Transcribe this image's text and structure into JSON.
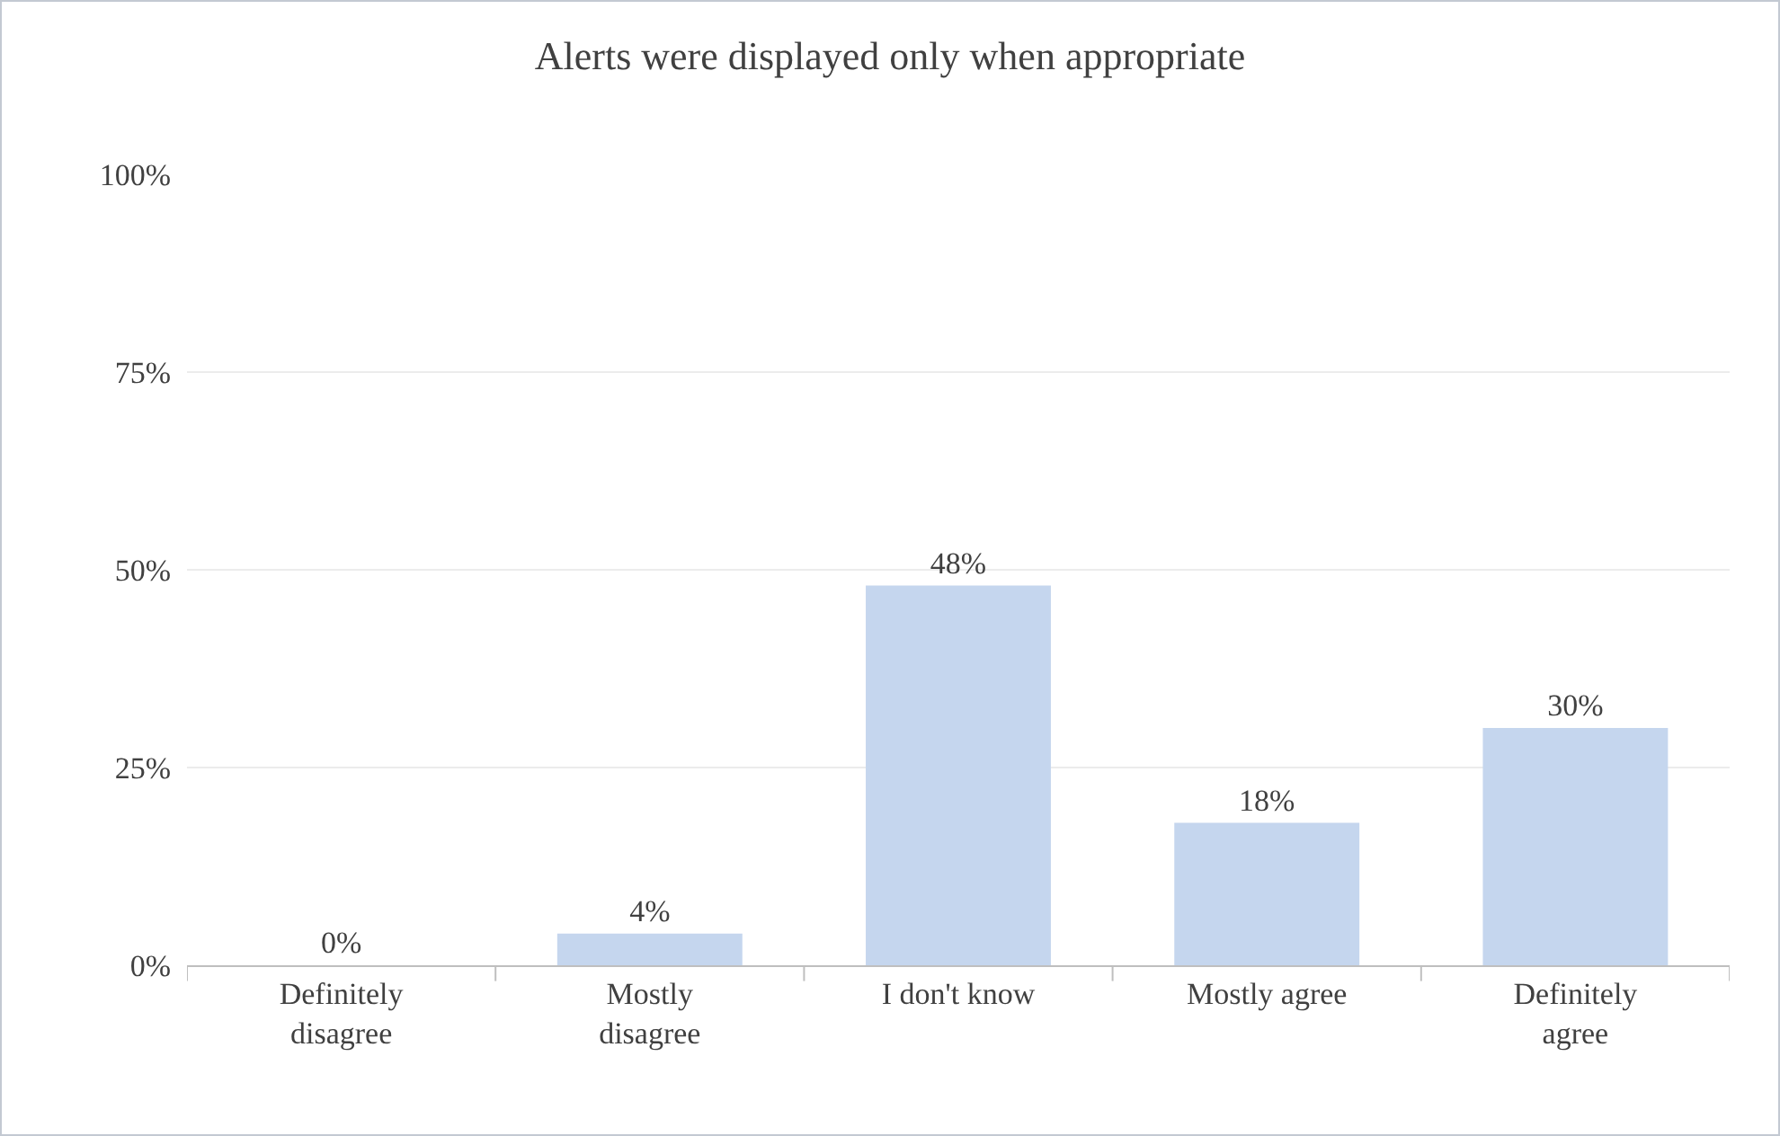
{
  "chart_data": {
    "type": "bar",
    "title": "Alerts were displayed only when appropriate",
    "categories": [
      "Definitely disagree",
      "Mostly disagree",
      "I don't know",
      "Mostly agree",
      "Definitely agree"
    ],
    "values": [
      0,
      4,
      48,
      18,
      30
    ],
    "value_labels": [
      "0%",
      "4%",
      "48%",
      "18%",
      "30%"
    ],
    "color": "#c5d6ee",
    "ylim": [
      0,
      100
    ],
    "yticks": [
      {
        "value": 0,
        "label": "0%"
      },
      {
        "value": 25,
        "label": "25%"
      },
      {
        "value": 50,
        "label": "50%"
      },
      {
        "value": 75,
        "label": "75%"
      },
      {
        "value": 100,
        "label": "100%"
      }
    ],
    "grid": "y"
  }
}
